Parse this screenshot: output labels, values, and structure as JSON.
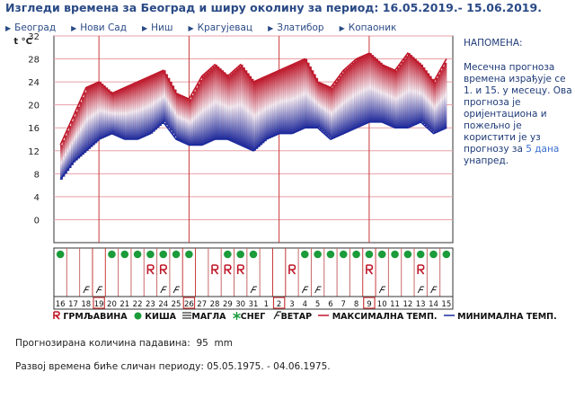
{
  "header": {
    "title": "Изгледи времена за Београд и ширу околину за период: 16.05.2019.- 15.06.2019."
  },
  "cities": [
    "Београд",
    "Нови Сад",
    "Ниш",
    "Крагујевац",
    "Златибор",
    "Копаоник"
  ],
  "note": {
    "heading": "НАПОМЕНА:",
    "text_before": "Месечна прогноза времена израђује се 1. и 15. у месецу. Ова прогноза је оријентациона и пожељно је користити је уз прогнозу за ",
    "link": "5 дана",
    "text_after": " унапред."
  },
  "legend": {
    "thunder": "ГРМЉАВИНА",
    "rain": "КИША",
    "fog": "МАГЛА",
    "snow": "СНЕГ",
    "wind": "ВЕТАР",
    "max": "МАКСИМАЛНА ТЕМП.",
    "min": "МИНИМАЛНА ТЕМП."
  },
  "colors": {
    "max": "#c0182a",
    "min": "#1a2a9e",
    "rain": "#1b9b3a",
    "grid": "#c83a3a",
    "text": "#2a4a86"
  },
  "precip": {
    "label": "Прогнозирана количина падавина:",
    "value": "95",
    "unit": "mm"
  },
  "similar": {
    "label": "Развој времена биће сличан периоду:",
    "value": "05.05.1975. - 04.06.1975."
  },
  "chart_data": {
    "type": "area",
    "ylabel": "t °C",
    "ylim": [
      -4,
      32
    ],
    "yticks": [
      0,
      4,
      8,
      12,
      16,
      20,
      24,
      28,
      32
    ],
    "x": [
      "16",
      "17",
      "18",
      "19",
      "20",
      "21",
      "22",
      "23",
      "24",
      "25",
      "26",
      "27",
      "28",
      "29",
      "30",
      "31",
      "1",
      "2",
      "3",
      "4",
      "5",
      "6",
      "7",
      "8",
      "9",
      "10",
      "11",
      "12",
      "13",
      "14",
      "15"
    ],
    "boxed_days": [
      "19",
      "26",
      "2",
      "9"
    ],
    "series": [
      {
        "name": "МАКСИМАЛНА ТЕМП.",
        "values": [
          13,
          18,
          23,
          24,
          22,
          23,
          24,
          25,
          26,
          22,
          21,
          25,
          27,
          25,
          27,
          24,
          25,
          26,
          27,
          28,
          24,
          23,
          26,
          28,
          29,
          27,
          26,
          29,
          27,
          24,
          28
        ]
      },
      {
        "name": "МИНИМАЛНА ТЕМП.",
        "values": [
          7,
          10,
          12,
          14,
          15,
          14,
          14,
          15,
          17,
          14,
          13,
          13,
          14,
          14,
          13,
          12,
          14,
          15,
          15,
          16,
          16,
          14,
          15,
          16,
          17,
          17,
          16,
          16,
          17,
          15,
          16
        ]
      }
    ],
    "weather": {
      "rain": [
        1,
        0,
        0,
        0,
        1,
        1,
        1,
        1,
        1,
        1,
        1,
        0,
        0,
        1,
        1,
        1,
        0,
        0,
        0,
        1,
        1,
        1,
        1,
        1,
        1,
        1,
        1,
        1,
        1,
        1,
        1
      ],
      "thunder": [
        0,
        0,
        0,
        0,
        0,
        0,
        0,
        1,
        1,
        0,
        0,
        0,
        1,
        1,
        1,
        0,
        0,
        0,
        1,
        0,
        0,
        0,
        0,
        0,
        1,
        0,
        0,
        0,
        1,
        0,
        0
      ],
      "wind": [
        0,
        0,
        1,
        1,
        0,
        0,
        0,
        0,
        1,
        1,
        0,
        0,
        0,
        0,
        0,
        1,
        0,
        0,
        0,
        1,
        1,
        0,
        0,
        0,
        0,
        1,
        0,
        0,
        1,
        1,
        0
      ]
    }
  }
}
